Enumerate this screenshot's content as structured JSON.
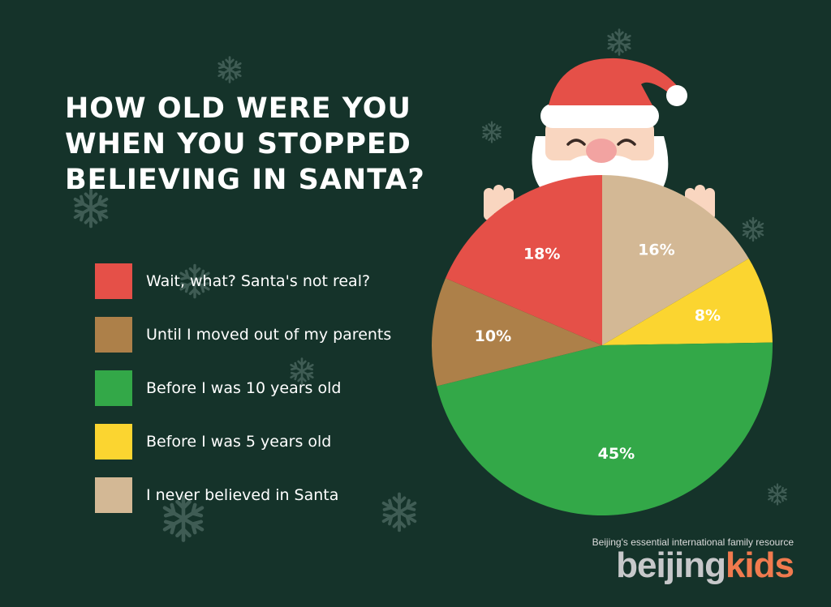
{
  "title_lines": [
    "HOW OLD WERE YOU",
    "WHEN YOU STOPPED",
    "BELIEVING IN SANTA?"
  ],
  "chart_data": {
    "type": "pie",
    "title": "HOW OLD WERE YOU WHEN YOU STOPPED BELIEVING IN SANTA?",
    "start": "12 o'clock, clockwise",
    "legend_position": "left",
    "slices": [
      {
        "label": "I never believed in Santa",
        "value": 16,
        "display": "16%",
        "color": "#d3b895"
      },
      {
        "label": "Before I was 5 years old",
        "value": 8,
        "display": "8%",
        "color": "#fbd530"
      },
      {
        "label": "Before I was 10 years old",
        "value": 45,
        "display": "45%",
        "color": "#33a848"
      },
      {
        "label": "Until I moved out of my parents",
        "value": 10,
        "display": "10%",
        "color": "#ad8049"
      },
      {
        "label": "Wait, what? Santa's not real?",
        "value": 18,
        "display": "18%",
        "color": "#e55048"
      }
    ],
    "legend_order": [
      "Wait, what? Santa's not real?",
      "Until I moved out of my parents",
      "Before I was 10 years old",
      "Before I was 5 years old",
      "I never believed in Santa"
    ]
  },
  "legend": [
    {
      "label": "Wait, what? Santa's not real?",
      "color": "#e55048"
    },
    {
      "label": "Until I moved out of my parents",
      "color": "#ad8049"
    },
    {
      "label": "Before I was 10 years old",
      "color": "#33a848"
    },
    {
      "label": "Before I was 5 years old",
      "color": "#fbd530"
    },
    {
      "label": "I never believed in Santa",
      "color": "#d3b895"
    }
  ],
  "brand": {
    "tagline": "Beijing's essential international family resource",
    "name_part1": "beijing",
    "name_part2": "kids"
  },
  "decoration": {
    "character": "santa-claus",
    "background_icon": "snowflake-icon",
    "colors": {
      "background": "#15332a",
      "snowflake": "#3f5c54",
      "hat": "#e55048",
      "skin": "#f9d6c0",
      "beard": "#ffffff"
    }
  }
}
